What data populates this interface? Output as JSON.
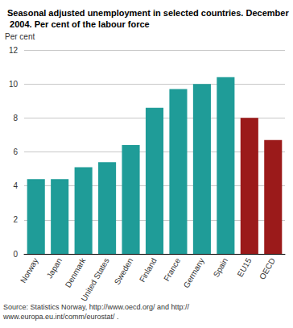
{
  "chart_data": {
    "type": "bar",
    "title": "Seasonal adjusted unemployment in selected countries. December 2004. Per cent of the labour force",
    "y_label": "Per cent",
    "source": "Source: Statistics Norway, http://www.oecd.org/ and http://www.europa.eu.int/comm/eurostat/ .",
    "categories": [
      "Norway",
      "Japan",
      "Denmark",
      "United States",
      "Sweden",
      "Finland",
      "France",
      "Germany",
      "Spain",
      "EU15",
      "OECD"
    ],
    "values": [
      4.4,
      4.4,
      5.1,
      5.4,
      6.4,
      8.6,
      9.7,
      10.0,
      10.4,
      8.0,
      6.7
    ],
    "colors": [
      "#1f9c98",
      "#1f9c98",
      "#1f9c98",
      "#1f9c98",
      "#1f9c98",
      "#1f9c98",
      "#1f9c98",
      "#1f9c98",
      "#1f9c98",
      "#9b1a1a",
      "#9b1a1a"
    ],
    "ylim": [
      0,
      12
    ],
    "yticks": [
      0,
      2,
      4,
      6,
      8,
      10,
      12
    ],
    "grid": true
  }
}
